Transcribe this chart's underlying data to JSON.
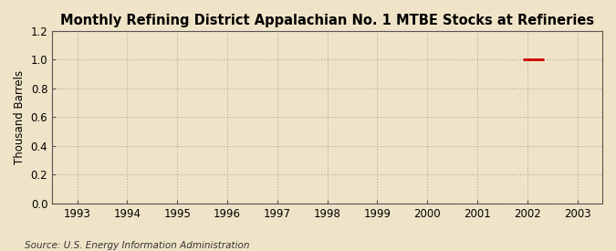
{
  "title": "Monthly Refining District Appalachian No. 1 MTBE Stocks at Refineries",
  "ylabel": "Thousand Barrels",
  "source": "Source: U.S. Energy Information Administration",
  "background_color": "#f0e4c8",
  "plot_bg_color": "#f0e4c8",
  "grid_color": "#aaaaaa",
  "line_color": "#cc0000",
  "xmin": 1992.5,
  "xmax": 2003.5,
  "ymin": 0.0,
  "ymax": 1.2,
  "yticks": [
    0.0,
    0.2,
    0.4,
    0.6,
    0.8,
    1.0,
    1.2
  ],
  "xticks": [
    1993,
    1994,
    1995,
    1996,
    1997,
    1998,
    1999,
    2000,
    2001,
    2002,
    2003
  ],
  "data_x": [
    2001.92,
    2002.0,
    2002.08,
    2002.17,
    2002.25,
    2002.33
  ],
  "data_y": [
    1.0,
    1.0,
    1.0,
    1.0,
    1.0,
    1.0
  ],
  "title_fontsize": 10.5,
  "label_fontsize": 8.5,
  "tick_fontsize": 8.5,
  "source_fontsize": 7.5
}
